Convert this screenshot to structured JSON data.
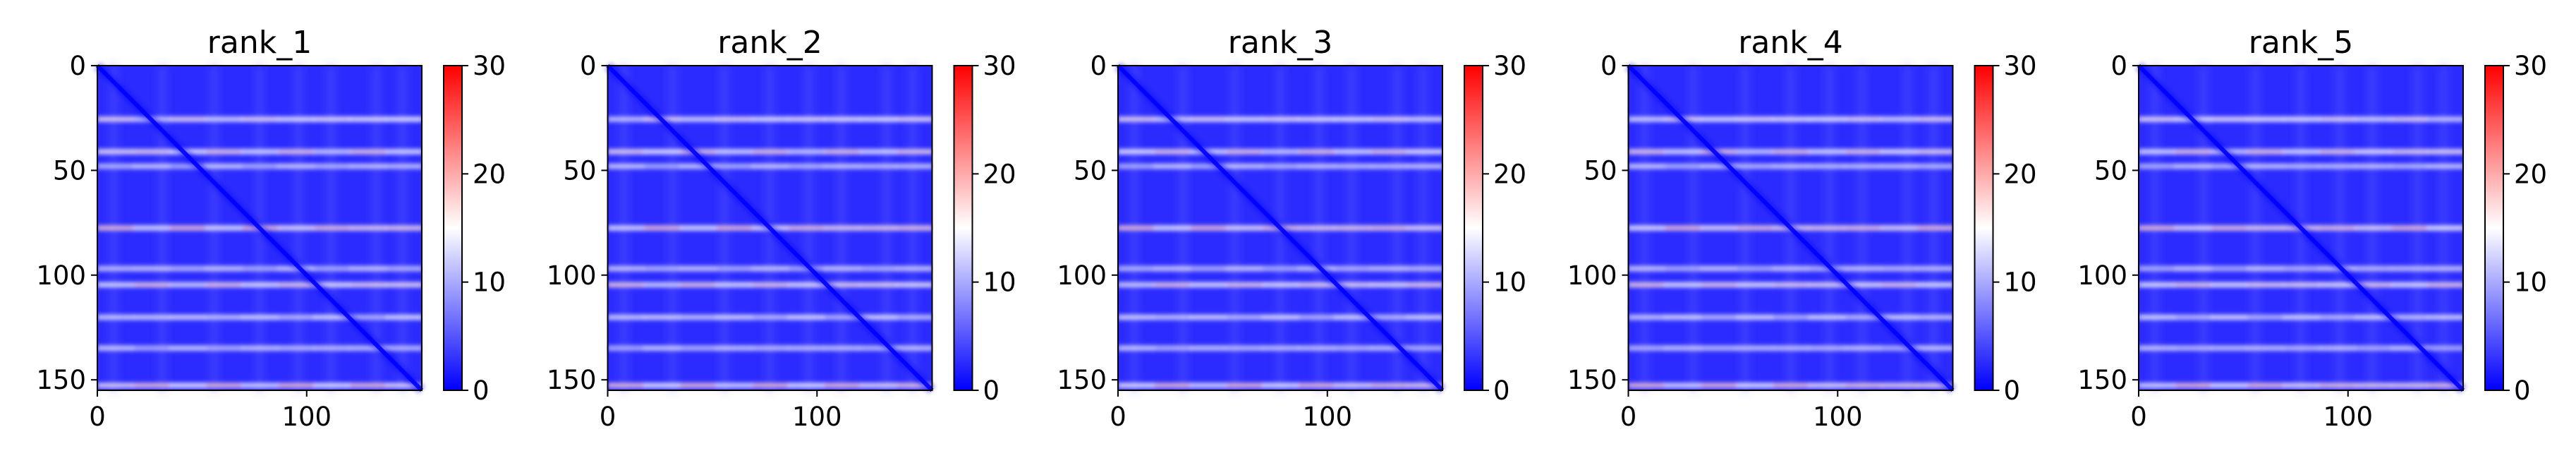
{
  "chart_data": [
    {
      "type": "heatmap",
      "title": "rank_1",
      "xticks": [
        "0",
        "100"
      ],
      "yticks": [
        "0",
        "50",
        "100",
        "150"
      ],
      "colorbar_ticks": [
        "0",
        "10",
        "20",
        "30"
      ],
      "xlim": [
        0,
        155
      ],
      "ylim": [
        0,
        155
      ],
      "clim": [
        0,
        30
      ],
      "colormap": [
        "#0000ff",
        "#ffffff",
        "#ff0000"
      ],
      "grid": false
    },
    {
      "type": "heatmap",
      "title": "rank_2",
      "xticks": [
        "0",
        "100"
      ],
      "yticks": [
        "0",
        "50",
        "100",
        "150"
      ],
      "colorbar_ticks": [
        "0",
        "10",
        "20",
        "30"
      ],
      "xlim": [
        0,
        155
      ],
      "ylim": [
        0,
        155
      ],
      "clim": [
        0,
        30
      ],
      "colormap": [
        "#0000ff",
        "#ffffff",
        "#ff0000"
      ],
      "grid": false
    },
    {
      "type": "heatmap",
      "title": "rank_3",
      "xticks": [
        "0",
        "100"
      ],
      "yticks": [
        "0",
        "50",
        "100",
        "150"
      ],
      "colorbar_ticks": [
        "0",
        "10",
        "20",
        "30"
      ],
      "xlim": [
        0,
        155
      ],
      "ylim": [
        0,
        155
      ],
      "clim": [
        0,
        30
      ],
      "colormap": [
        "#0000ff",
        "#ffffff",
        "#ff0000"
      ],
      "grid": false
    },
    {
      "type": "heatmap",
      "title": "rank_4",
      "xticks": [
        "0",
        "100"
      ],
      "yticks": [
        "0",
        "50",
        "100",
        "150"
      ],
      "colorbar_ticks": [
        "0",
        "10",
        "20",
        "30"
      ],
      "xlim": [
        0,
        155
      ],
      "ylim": [
        0,
        155
      ],
      "clim": [
        0,
        30
      ],
      "colormap": [
        "#0000ff",
        "#ffffff",
        "#ff0000"
      ],
      "grid": false
    },
    {
      "type": "heatmap",
      "title": "rank_5",
      "xticks": [
        "0",
        "100"
      ],
      "yticks": [
        "0",
        "50",
        "100",
        "150"
      ],
      "colorbar_ticks": [
        "0",
        "10",
        "20",
        "30"
      ],
      "xlim": [
        0,
        155
      ],
      "ylim": [
        0,
        155
      ],
      "clim": [
        0,
        30
      ],
      "colormap": [
        "#0000ff",
        "#ffffff",
        "#ff0000"
      ],
      "grid": false
    }
  ]
}
